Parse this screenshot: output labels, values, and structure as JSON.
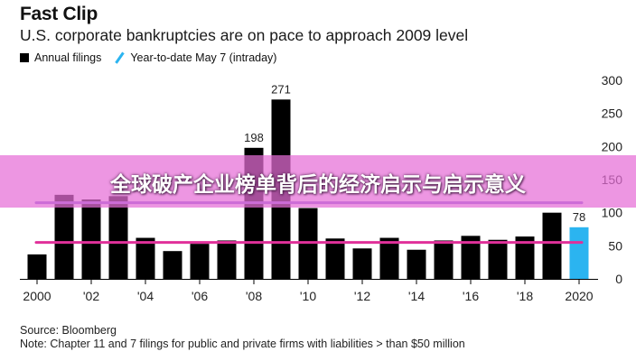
{
  "header": {
    "title": "Fast Clip",
    "subtitle": "U.S. corporate bankruptcies are on pace to approach 2009 level"
  },
  "legend": {
    "annual": "Annual filings",
    "ytd": "Year-to-date May 7 (intraday)"
  },
  "overlay": {
    "banner_text": "全球破产企业榜单背后的经济启示与启示意义"
  },
  "footer": {
    "source": "Source: Bloomberg",
    "note": "Note: Chapter 11 and 7 filings for public and private firms with liabilities > than $50 million"
  },
  "colors": {
    "bar": "#000000",
    "ytd_bar": "#2bb4f0",
    "pink_line": "#e0309a",
    "purple_line": "#8a6ad6",
    "banner": "#e66ed7"
  },
  "chart_data": {
    "type": "bar",
    "x": [
      2000,
      2001,
      2002,
      2003,
      2004,
      2005,
      2006,
      2007,
      2008,
      2009,
      2010,
      2011,
      2012,
      2013,
      2014,
      2015,
      2016,
      2017,
      2018,
      2019,
      2020
    ],
    "series": [
      {
        "name": "Annual filings",
        "values": [
          37,
          127,
          120,
          125,
          62,
          42,
          53,
          58,
          198,
          271,
          107,
          61,
          46,
          62,
          44,
          58,
          65,
          59,
          64,
          100,
          null
        ]
      },
      {
        "name": "Year-to-date May 7 (intraday)",
        "values": [
          null,
          null,
          null,
          null,
          null,
          null,
          null,
          null,
          null,
          null,
          null,
          null,
          null,
          null,
          null,
          null,
          null,
          null,
          null,
          null,
          78
        ]
      }
    ],
    "xticks": [
      "2000",
      "'02",
      "'04",
      "'06",
      "'08",
      "'10",
      "'12",
      "'14",
      "'16",
      "'18",
      "2020"
    ],
    "xtick_years": [
      2000,
      2002,
      2004,
      2006,
      2008,
      2010,
      2012,
      2014,
      2016,
      2018,
      2020
    ],
    "yticks": [
      0,
      50,
      100,
      150,
      200,
      250,
      300
    ],
    "ylim": [
      0,
      300
    ],
    "y_axis_side": "right",
    "data_labels": [
      {
        "x": 2008,
        "label": "198"
      },
      {
        "x": 2009,
        "label": "271"
      },
      {
        "x": 2020,
        "label": "78"
      }
    ],
    "reference_lines": [
      {
        "color": "pink",
        "y": 55
      },
      {
        "color": "purple",
        "y": 115
      }
    ]
  }
}
